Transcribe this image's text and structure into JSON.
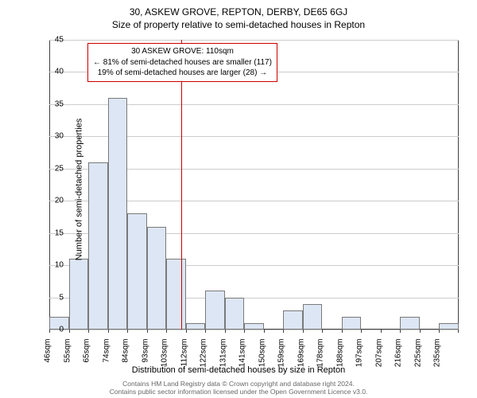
{
  "titles": {
    "line1": "30, ASKEW GROVE, REPTON, DERBY, DE65 6GJ",
    "line2": "Size of property relative to semi-detached houses in Repton"
  },
  "axes": {
    "ylabel": "Number of semi-detached properties",
    "xlabel": "Distribution of semi-detached houses by size in Repton",
    "ylim": [
      0,
      45
    ],
    "ytick_step": 5,
    "yticks": [
      0,
      5,
      10,
      15,
      20,
      25,
      30,
      35,
      40,
      45
    ],
    "xticks_labels": [
      "46sqm",
      "55sqm",
      "65sqm",
      "74sqm",
      "84sqm",
      "93sqm",
      "103sqm",
      "112sqm",
      "122sqm",
      "131sqm",
      "141sqm",
      "150sqm",
      "159sqm",
      "169sqm",
      "178sqm",
      "188sqm",
      "197sqm",
      "207sqm",
      "216sqm",
      "225sqm",
      "235sqm"
    ],
    "label_fontsize": 11,
    "tick_fontsize": 10
  },
  "histogram": {
    "type": "histogram",
    "bar_color": "#dde6f4",
    "bar_border_color": "#7a7a7a",
    "grid_color": "#cccccc",
    "axis_color": "#404040",
    "background_color": "#ffffff",
    "bar_count": 21,
    "values": [
      2,
      11,
      26,
      36,
      18,
      16,
      11,
      1,
      6,
      5,
      1,
      0,
      3,
      4,
      0,
      2,
      0,
      0,
      2,
      0,
      1
    ]
  },
  "reference": {
    "value_sqm": 110,
    "line_color": "#cc0000",
    "box_border_color": "#cc0000",
    "lines": {
      "l1": "30 ASKEW GROVE: 110sqm",
      "l2": "← 81% of semi-detached houses are smaller (117)",
      "l3": "19% of semi-detached houses are larger (28) →"
    }
  },
  "footer": {
    "l1": "Contains HM Land Registry data © Crown copyright and database right 2024.",
    "l2": "Contains public sector information licensed under the Open Government Licence v3.0."
  }
}
